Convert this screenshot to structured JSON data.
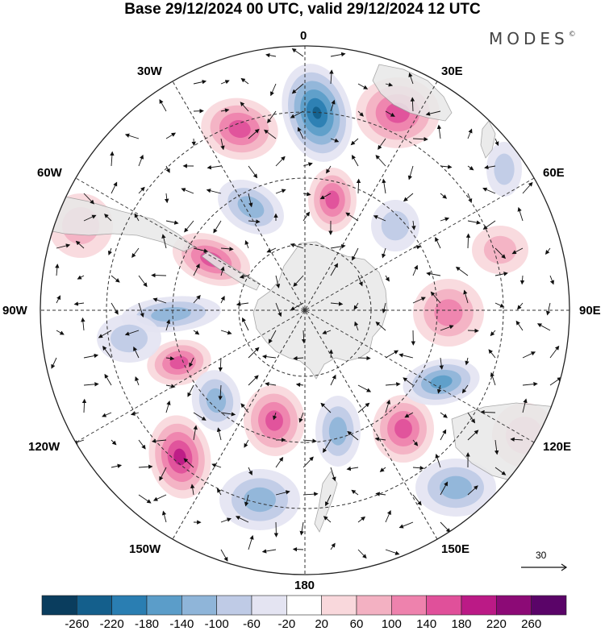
{
  "title": "Base 29/12/2024 00 UTC, valid 29/12/2024 12 UTC",
  "brand": "MODES",
  "brand_mark": "©",
  "meridian_labels": {
    "m0": "0",
    "m30e": "30E",
    "m60e": "60E",
    "m90e": "90E",
    "m120e": "120E",
    "m150e": "150E",
    "m180": "180",
    "m150w": "150W",
    "m120w": "120W",
    "m90w": "90W",
    "m60w": "60W",
    "m30w": "30W"
  },
  "reference_vector": "30",
  "colorbar": {
    "ticks": [
      "-260",
      "-220",
      "-180",
      "-140",
      "-100",
      "-60",
      "-20",
      "20",
      "60",
      "100",
      "140",
      "180",
      "220",
      "260"
    ],
    "colors": [
      "#0a3d5e",
      "#145f8c",
      "#2a7eb2",
      "#5b9dc9",
      "#8fb5d9",
      "#bfcbe6",
      "#e4e4f2",
      "#ffffff",
      "#f9d8dc",
      "#f3b1c2",
      "#ee82ad",
      "#e0509a",
      "#bb1a86",
      "#8c0a76",
      "#5a0468"
    ]
  },
  "colors": {
    "land": "#e8e8e8",
    "land_edge": "#9a9a9a",
    "grid": "#333333",
    "arrow": "#111111"
  }
}
